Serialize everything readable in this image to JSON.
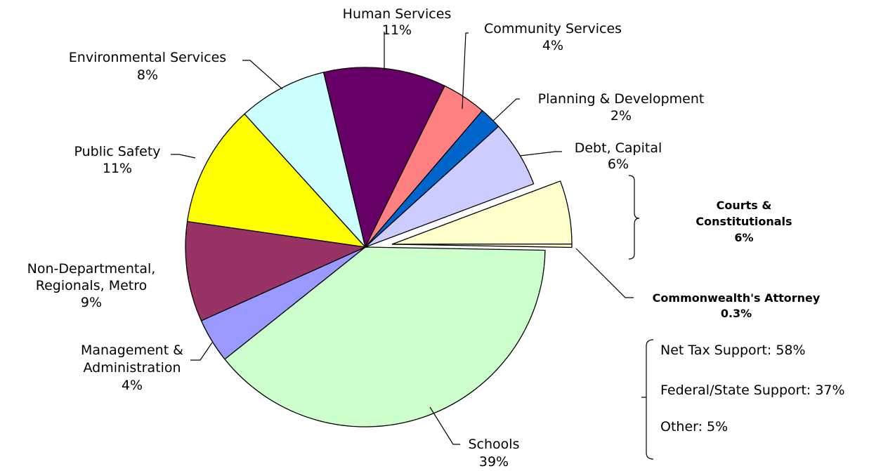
{
  "chart_data": {
    "type": "pie",
    "title": "",
    "slices": [
      {
        "label": "Schools",
        "value": 39,
        "display": "39%",
        "color": "#ccffcc"
      },
      {
        "label": "Management & Administration",
        "value": 4,
        "display": "4%",
        "color": "#9999ff"
      },
      {
        "label": "Non-Departmental, Regionals, Metro",
        "value": 9,
        "display": "9%",
        "color": "#993366"
      },
      {
        "label": "Public Safety",
        "value": 11,
        "display": "11%",
        "color": "#ffff00"
      },
      {
        "label": "Environmental Services",
        "value": 8,
        "display": "8%",
        "color": "#ccffff"
      },
      {
        "label": "Human Services",
        "value": 11,
        "display": "11%",
        "color": "#660066"
      },
      {
        "label": "Community Services",
        "value": 4,
        "display": "4%",
        "color": "#ff8080"
      },
      {
        "label": "Planning & Development",
        "value": 2,
        "display": "2%",
        "color": "#0066cc"
      },
      {
        "label": "Debt, Capital",
        "value": 6,
        "display": "6%",
        "color": "#ccccff"
      },
      {
        "label": "Courts & Constitutionals",
        "value": 5.7,
        "display": "6%",
        "color": "#ffffcc",
        "exploded": true
      },
      {
        "label": "Commonwealth's Attorney",
        "value": 0.3,
        "display": "0.3%",
        "color": "#ffffcc",
        "exploded": true
      }
    ],
    "label_lines": {
      "human_services": [
        "Human Services",
        "11%"
      ],
      "community_services": [
        "Community Services",
        "4%"
      ],
      "environmental_services": [
        "Environmental Services",
        "8%"
      ],
      "planning_development": [
        "Planning & Development",
        "2%"
      ],
      "debt_capital": [
        "Debt, Capital",
        "6%"
      ],
      "public_safety": [
        "Public Safety",
        "11%"
      ],
      "courts": [
        "Courts &",
        "Constitutionals",
        "6%"
      ],
      "non_departmental": [
        "Non-Departmental,",
        "Regionals, Metro",
        "9%"
      ],
      "commonwealth": [
        "Commonwealth's Attorney",
        "0.3%"
      ],
      "management": [
        "Management &",
        "Administration",
        "4%"
      ],
      "schools": [
        "Schools",
        "39%"
      ]
    },
    "funding_notes": [
      "Net Tax Support: 58%",
      "Federal/State Support: 37%",
      "Other: 5%"
    ]
  }
}
